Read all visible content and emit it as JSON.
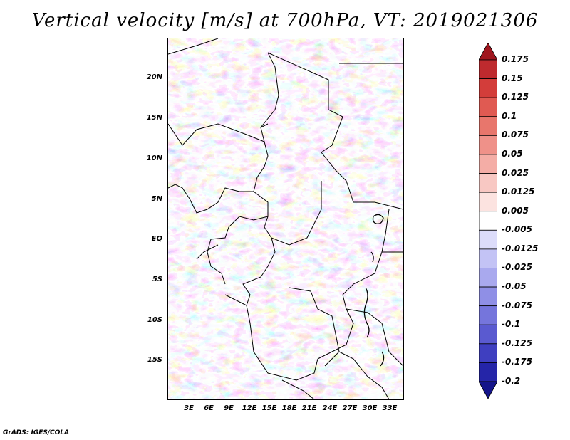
{
  "title": "Vertical velocity [m/s] at 700hPa, VT: 2019021306",
  "credit": "GrADS: IGES/COLA",
  "latitude_labels": [
    "20N",
    "15N",
    "10N",
    "5N",
    "EQ",
    "5S",
    "10S",
    "15S"
  ],
  "longitude_labels": [
    "3E",
    "6E",
    "9E",
    "12E",
    "15E",
    "18E",
    "21E",
    "24E",
    "27E",
    "30E",
    "33E"
  ],
  "colorbar": {
    "labels": [
      "0.175",
      "0.15",
      "0.125",
      "0.1",
      "0.075",
      "0.05",
      "0.025",
      "0.0125",
      "0.005",
      "-0.005",
      "-0.0125",
      "-0.025",
      "-0.05",
      "-0.075",
      "-0.1",
      "-0.125",
      "-0.175",
      "-0.2"
    ],
    "colors": [
      "#a0151e",
      "#be2a2e",
      "#d33d3a",
      "#e05a52",
      "#e8766c",
      "#ef9189",
      "#f4ada6",
      "#f8c8c3",
      "#fce3e0",
      "#ffffff",
      "#dcdcfa",
      "#c3c3f5",
      "#a9a9ee",
      "#8f8fe6",
      "#7575dc",
      "#5a5ad0",
      "#3f3fc0",
      "#2525a8",
      "#14148a"
    ]
  },
  "map_data": {
    "variable": "Vertical velocity",
    "units": "m/s",
    "level": "700hPa",
    "valid_time": "2019021306",
    "lat_range": [
      "18S",
      "24N"
    ],
    "lon_range": [
      "0E",
      "35E"
    ]
  }
}
